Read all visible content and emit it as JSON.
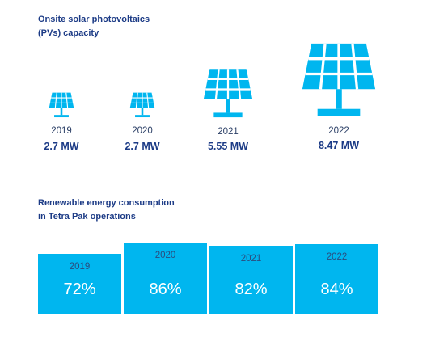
{
  "colors": {
    "accent": "#00b6ef",
    "title": "#1c3b86"
  },
  "solar": {
    "title_line1": "Onsite solar photovoltaics",
    "title_line2": "(PVs) capacity",
    "icon": "solar-panel-icon",
    "items": [
      {
        "year": "2019",
        "value_label": "2.7 MW",
        "mw": 2.7
      },
      {
        "year": "2020",
        "value_label": "2.7 MW",
        "mw": 2.7
      },
      {
        "year": "2021",
        "value_label": "5.55 MW",
        "mw": 5.55
      },
      {
        "year": "2022",
        "value_label": "8.47 MW",
        "mw": 8.47
      }
    ]
  },
  "renewable": {
    "title_line1": "Renewable energy consumption",
    "title_line2": "in Tetra Pak operations",
    "items": [
      {
        "year": "2019",
        "value_label": "72%"
      },
      {
        "year": "2020",
        "value_label": "86%"
      },
      {
        "year": "2021",
        "value_label": "82%"
      },
      {
        "year": "2022",
        "value_label": "84%"
      }
    ]
  },
  "chart_data": [
    {
      "type": "bar",
      "title": "Onsite solar photovoltaics (PVs) capacity",
      "categories": [
        "2019",
        "2020",
        "2021",
        "2022"
      ],
      "values": [
        2.7,
        2.7,
        5.55,
        8.47
      ],
      "unit": "MW"
    },
    {
      "type": "bar",
      "title": "Renewable energy consumption in Tetra Pak operations",
      "categories": [
        "2019",
        "2020",
        "2021",
        "2022"
      ],
      "values": [
        72,
        86,
        82,
        84
      ],
      "unit": "%"
    }
  ]
}
